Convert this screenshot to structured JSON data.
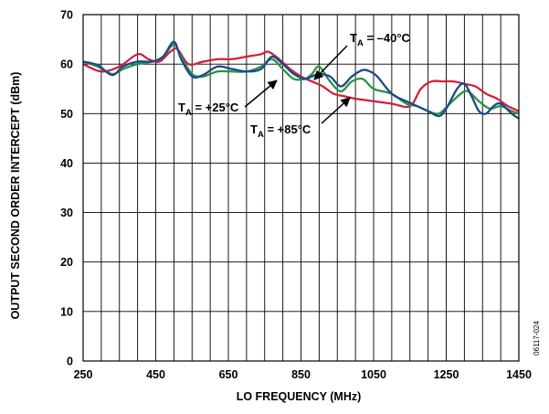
{
  "chart_data": {
    "type": "line",
    "xlabel": "LO FREQUENCY (MHz)",
    "ylabel": "OUTPUT SECOND ORDER INTERCEPT (dBm)",
    "xlim": [
      250,
      1450
    ],
    "ylim": [
      0,
      70
    ],
    "x_ticks": [
      "250",
      "450",
      "650",
      "850",
      "1050",
      "1250",
      "1450"
    ],
    "y_ticks": [
      "0",
      "10",
      "20",
      "30",
      "40",
      "50",
      "60",
      "70"
    ],
    "grid": true,
    "figure_id": "06117-024",
    "series": [
      {
        "name": "TA = –40°C",
        "color": "#1b4a8c",
        "x": [
          250,
          290,
          330,
          360,
          400,
          440,
          470,
          500,
          520,
          550,
          580,
          620,
          660,
          700,
          740,
          770,
          800,
          830,
          860,
          880,
          900,
          930,
          960,
          990,
          1020,
          1040,
          1060,
          1100,
          1140,
          1170,
          1200,
          1230,
          1250,
          1280,
          1300,
          1320,
          1340,
          1360,
          1380,
          1400,
          1430,
          1450
        ],
        "y": [
          60.5,
          59.8,
          57.8,
          59.5,
          60.5,
          60.5,
          61.5,
          64.5,
          61.0,
          57.5,
          57.8,
          59.5,
          59.0,
          58.5,
          59.0,
          61.5,
          60.0,
          58.0,
          57.0,
          57.5,
          58.0,
          57.5,
          55.5,
          57.5,
          58.8,
          58.5,
          57.5,
          54.0,
          52.5,
          51.5,
          50.5,
          49.5,
          51.0,
          55.0,
          56.0,
          53.5,
          50.5,
          50.0,
          51.5,
          52.0,
          50.0,
          49.0
        ]
      },
      {
        "name": "TA = +25°C",
        "color": "#2a9441",
        "x": [
          250,
          290,
          330,
          360,
          400,
          440,
          470,
          500,
          520,
          550,
          580,
          620,
          660,
          700,
          740,
          770,
          800,
          830,
          860,
          880,
          900,
          930,
          960,
          990,
          1020,
          1050,
          1100,
          1140,
          1170,
          1200,
          1230,
          1260,
          1290,
          1310,
          1340,
          1370,
          1400,
          1430,
          1450
        ],
        "y": [
          60.5,
          59.5,
          58.0,
          59.0,
          60.0,
          60.5,
          61.5,
          64.0,
          61.5,
          58.0,
          57.5,
          58.5,
          58.5,
          58.5,
          59.5,
          61.0,
          59.0,
          57.0,
          57.0,
          58.0,
          59.5,
          56.5,
          54.5,
          56.5,
          57.0,
          55.0,
          54.0,
          52.0,
          51.5,
          50.5,
          50.0,
          52.0,
          54.0,
          54.5,
          52.5,
          51.0,
          51.5,
          50.5,
          50.0
        ]
      },
      {
        "name": "TA = +85°C",
        "color": "#d41f3c",
        "x": [
          250,
          300,
          350,
          400,
          430,
          460,
          490,
          510,
          540,
          580,
          620,
          660,
          700,
          740,
          760,
          790,
          820,
          850,
          880,
          910,
          940,
          970,
          1000,
          1050,
          1100,
          1150,
          1180,
          1210,
          1240,
          1270,
          1300,
          1330,
          1360,
          1390,
          1420,
          1450
        ],
        "y": [
          60.0,
          58.5,
          59.5,
          62.0,
          61.0,
          60.5,
          62.5,
          63.0,
          60.0,
          60.5,
          61.0,
          61.0,
          61.5,
          62.0,
          62.5,
          61.0,
          59.0,
          57.5,
          56.5,
          55.5,
          54.0,
          53.5,
          53.0,
          52.5,
          52.0,
          51.5,
          55.0,
          56.5,
          56.5,
          56.5,
          56.0,
          55.5,
          54.0,
          53.0,
          51.5,
          50.5
        ]
      }
    ],
    "annotations": [
      {
        "main": "T",
        "sub": "A",
        "rest": " = –40°C"
      },
      {
        "main": "T",
        "sub": "A",
        "rest": " = +25°C"
      },
      {
        "main": "T",
        "sub": "A",
        "rest": " = +85°C"
      }
    ]
  }
}
